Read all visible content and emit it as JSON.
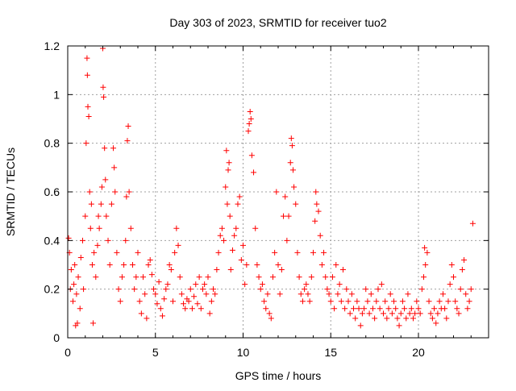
{
  "chart_data": {
    "type": "scatter",
    "title": "Day 303 of 2023, SRMTID for receiver tuo2",
    "xlabel": "GPS time / hours",
    "ylabel": "SRMTID / TECUs",
    "xlim": [
      0,
      24
    ],
    "ylim": [
      0,
      1.2
    ],
    "x_ticks": [
      0,
      5,
      10,
      15,
      20
    ],
    "x_tick_labels": [
      "0",
      "5",
      "10",
      "15",
      "20"
    ],
    "y_ticks": [
      0,
      0.2,
      0.4,
      0.6,
      0.8,
      1,
      1.2
    ],
    "y_tick_labels": [
      "0",
      "0.2",
      "0.4",
      "0.6",
      "0.8",
      "1",
      "1.2"
    ],
    "grid": true,
    "marker": "+",
    "color": "#ff0000",
    "series": [
      {
        "name": "SRMTID",
        "points": [
          [
            0.05,
            0.41
          ],
          [
            0.1,
            0.35
          ],
          [
            0.15,
            0.2
          ],
          [
            0.2,
            0.28
          ],
          [
            0.3,
            0.15
          ],
          [
            0.35,
            0.22
          ],
          [
            0.4,
            0.3
          ],
          [
            0.45,
            0.05
          ],
          [
            0.5,
            0.18
          ],
          [
            0.55,
            0.06
          ],
          [
            0.6,
            0.25
          ],
          [
            0.7,
            0.12
          ],
          [
            0.75,
            0.33
          ],
          [
            0.85,
            0.4
          ],
          [
            0.9,
            0.2
          ],
          [
            1.0,
            0.5
          ],
          [
            1.05,
            0.8
          ],
          [
            1.1,
            1.15
          ],
          [
            1.12,
            1.08
          ],
          [
            1.15,
            0.95
          ],
          [
            1.2,
            0.91
          ],
          [
            1.25,
            0.6
          ],
          [
            1.3,
            0.45
          ],
          [
            1.35,
            0.55
          ],
          [
            1.4,
            0.3
          ],
          [
            1.45,
            0.06
          ],
          [
            1.5,
            0.35
          ],
          [
            1.6,
            0.25
          ],
          [
            1.7,
            0.38
          ],
          [
            1.75,
            0.5
          ],
          [
            1.8,
            0.45
          ],
          [
            1.9,
            0.55
          ],
          [
            1.95,
            0.62
          ],
          [
            2.0,
            1.19
          ],
          [
            2.02,
            1.03
          ],
          [
            2.05,
            0.99
          ],
          [
            2.1,
            0.78
          ],
          [
            2.15,
            0.65
          ],
          [
            2.2,
            0.5
          ],
          [
            2.3,
            0.4
          ],
          [
            2.4,
            0.3
          ],
          [
            2.5,
            0.55
          ],
          [
            2.6,
            0.78
          ],
          [
            2.65,
            0.7
          ],
          [
            2.7,
            0.6
          ],
          [
            2.8,
            0.35
          ],
          [
            2.9,
            0.2
          ],
          [
            3.0,
            0.15
          ],
          [
            3.1,
            0.25
          ],
          [
            3.2,
            0.3
          ],
          [
            3.3,
            0.4
          ],
          [
            3.35,
            0.58
          ],
          [
            3.4,
            0.81
          ],
          [
            3.45,
            0.87
          ],
          [
            3.5,
            0.6
          ],
          [
            3.6,
            0.45
          ],
          [
            3.7,
            0.3
          ],
          [
            3.8,
            0.2
          ],
          [
            3.9,
            0.25
          ],
          [
            4.0,
            0.35
          ],
          [
            4.1,
            0.15
          ],
          [
            4.2,
            0.1
          ],
          [
            4.3,
            0.25
          ],
          [
            4.4,
            0.18
          ],
          [
            4.5,
            0.08
          ],
          [
            4.6,
            0.3
          ],
          [
            4.7,
            0.32
          ],
          [
            4.8,
            0.26
          ],
          [
            4.9,
            0.2
          ],
          [
            5.0,
            0.18
          ],
          [
            5.1,
            0.14
          ],
          [
            5.2,
            0.23
          ],
          [
            5.3,
            0.12
          ],
          [
            5.4,
            0.09
          ],
          [
            5.5,
            0.16
          ],
          [
            5.6,
            0.2
          ],
          [
            5.7,
            0.22
          ],
          [
            5.8,
            0.3
          ],
          [
            5.9,
            0.28
          ],
          [
            6.0,
            0.15
          ],
          [
            6.1,
            0.35
          ],
          [
            6.2,
            0.45
          ],
          [
            6.3,
            0.38
          ],
          [
            6.4,
            0.25
          ],
          [
            6.5,
            0.18
          ],
          [
            6.6,
            0.14
          ],
          [
            6.7,
            0.12
          ],
          [
            6.8,
            0.16
          ],
          [
            6.9,
            0.15
          ],
          [
            7.0,
            0.2
          ],
          [
            7.1,
            0.12
          ],
          [
            7.2,
            0.17
          ],
          [
            7.3,
            0.22
          ],
          [
            7.4,
            0.14
          ],
          [
            7.5,
            0.25
          ],
          [
            7.6,
            0.12
          ],
          [
            7.7,
            0.2
          ],
          [
            7.8,
            0.22
          ],
          [
            7.9,
            0.18
          ],
          [
            8.0,
            0.25
          ],
          [
            8.1,
            0.1
          ],
          [
            8.2,
            0.15
          ],
          [
            8.3,
            0.2
          ],
          [
            8.4,
            0.18
          ],
          [
            8.5,
            0.28
          ],
          [
            8.6,
            0.35
          ],
          [
            8.7,
            0.42
          ],
          [
            8.8,
            0.45
          ],
          [
            8.9,
            0.4
          ],
          [
            9.0,
            0.62
          ],
          [
            9.05,
            0.77
          ],
          [
            9.1,
            0.55
          ],
          [
            9.15,
            0.69
          ],
          [
            9.2,
            0.72
          ],
          [
            9.25,
            0.5
          ],
          [
            9.3,
            0.28
          ],
          [
            9.4,
            0.36
          ],
          [
            9.5,
            0.42
          ],
          [
            9.6,
            0.45
          ],
          [
            9.7,
            0.55
          ],
          [
            9.8,
            0.58
          ],
          [
            9.9,
            0.32
          ],
          [
            10.0,
            0.38
          ],
          [
            10.1,
            0.22
          ],
          [
            10.2,
            0.3
          ],
          [
            10.3,
            0.85
          ],
          [
            10.35,
            0.88
          ],
          [
            10.4,
            0.93
          ],
          [
            10.45,
            0.9
          ],
          [
            10.5,
            0.75
          ],
          [
            10.6,
            0.68
          ],
          [
            10.7,
            0.45
          ],
          [
            10.8,
            0.3
          ],
          [
            10.9,
            0.25
          ],
          [
            11.0,
            0.2
          ],
          [
            11.1,
            0.22
          ],
          [
            11.2,
            0.15
          ],
          [
            11.3,
            0.12
          ],
          [
            11.4,
            0.18
          ],
          [
            11.5,
            0.1
          ],
          [
            11.6,
            0.08
          ],
          [
            11.7,
            0.25
          ],
          [
            11.8,
            0.35
          ],
          [
            11.9,
            0.6
          ],
          [
            12.0,
            0.3
          ],
          [
            12.1,
            0.18
          ],
          [
            12.2,
            0.28
          ],
          [
            12.3,
            0.5
          ],
          [
            12.4,
            0.58
          ],
          [
            12.5,
            0.4
          ],
          [
            12.6,
            0.5
          ],
          [
            12.7,
            0.72
          ],
          [
            12.75,
            0.82
          ],
          [
            12.8,
            0.79
          ],
          [
            12.85,
            0.69
          ],
          [
            12.9,
            0.62
          ],
          [
            13.0,
            0.55
          ],
          [
            13.1,
            0.35
          ],
          [
            13.2,
            0.25
          ],
          [
            13.3,
            0.18
          ],
          [
            13.4,
            0.15
          ],
          [
            13.5,
            0.2
          ],
          [
            13.6,
            0.22
          ],
          [
            13.7,
            0.18
          ],
          [
            13.8,
            0.15
          ],
          [
            13.9,
            0.25
          ],
          [
            14.0,
            0.35
          ],
          [
            14.1,
            0.48
          ],
          [
            14.15,
            0.6
          ],
          [
            14.2,
            0.55
          ],
          [
            14.3,
            0.52
          ],
          [
            14.4,
            0.42
          ],
          [
            14.5,
            0.3
          ],
          [
            14.6,
            0.35
          ],
          [
            14.7,
            0.25
          ],
          [
            14.8,
            0.2
          ],
          [
            14.9,
            0.18
          ],
          [
            15.0,
            0.15
          ],
          [
            15.1,
            0.25
          ],
          [
            15.2,
            0.12
          ],
          [
            15.3,
            0.3
          ],
          [
            15.4,
            0.18
          ],
          [
            15.5,
            0.22
          ],
          [
            15.6,
            0.15
          ],
          [
            15.7,
            0.28
          ],
          [
            15.8,
            0.12
          ],
          [
            15.9,
            0.2
          ],
          [
            16.0,
            0.15
          ],
          [
            16.1,
            0.1
          ],
          [
            16.2,
            0.18
          ],
          [
            16.3,
            0.12
          ],
          [
            16.4,
            0.08
          ],
          [
            16.5,
            0.15
          ],
          [
            16.6,
            0.12
          ],
          [
            16.7,
            0.05
          ],
          [
            16.8,
            0.1
          ],
          [
            16.9,
            0.12
          ],
          [
            17.0,
            0.2
          ],
          [
            17.1,
            0.15
          ],
          [
            17.2,
            0.1
          ],
          [
            17.3,
            0.18
          ],
          [
            17.4,
            0.12
          ],
          [
            17.5,
            0.08
          ],
          [
            17.6,
            0.15
          ],
          [
            17.7,
            0.2
          ],
          [
            17.8,
            0.12
          ],
          [
            17.9,
            0.22
          ],
          [
            18.0,
            0.1
          ],
          [
            18.1,
            0.15
          ],
          [
            18.2,
            0.08
          ],
          [
            18.3,
            0.12
          ],
          [
            18.4,
            0.18
          ],
          [
            18.5,
            0.1
          ],
          [
            18.6,
            0.15
          ],
          [
            18.7,
            0.12
          ],
          [
            18.8,
            0.08
          ],
          [
            18.9,
            0.05
          ],
          [
            19.0,
            0.1
          ],
          [
            19.1,
            0.15
          ],
          [
            19.2,
            0.12
          ],
          [
            19.3,
            0.08
          ],
          [
            19.4,
            0.18
          ],
          [
            19.5,
            0.1
          ],
          [
            19.6,
            0.12
          ],
          [
            19.7,
            0.08
          ],
          [
            19.8,
            0.1
          ],
          [
            19.9,
            0.15
          ],
          [
            20.0,
            0.12
          ],
          [
            20.1,
            0.1
          ],
          [
            20.2,
            0.2
          ],
          [
            20.3,
            0.25
          ],
          [
            20.35,
            0.37
          ],
          [
            20.4,
            0.3
          ],
          [
            20.5,
            0.35
          ],
          [
            20.6,
            0.15
          ],
          [
            20.7,
            0.1
          ],
          [
            20.8,
            0.08
          ],
          [
            20.9,
            0.12
          ],
          [
            21.0,
            0.06
          ],
          [
            21.1,
            0.1
          ],
          [
            21.2,
            0.15
          ],
          [
            21.3,
            0.12
          ],
          [
            21.4,
            0.18
          ],
          [
            21.5,
            0.12
          ],
          [
            21.6,
            0.08
          ],
          [
            21.7,
            0.15
          ],
          [
            21.8,
            0.22
          ],
          [
            21.9,
            0.3
          ],
          [
            22.0,
            0.25
          ],
          [
            22.1,
            0.15
          ],
          [
            22.2,
            0.12
          ],
          [
            22.3,
            0.1
          ],
          [
            22.4,
            0.2
          ],
          [
            22.5,
            0.28
          ],
          [
            22.6,
            0.32
          ],
          [
            22.7,
            0.18
          ],
          [
            22.8,
            0.12
          ],
          [
            22.9,
            0.15
          ],
          [
            23.0,
            0.2
          ],
          [
            23.1,
            0.47
          ]
        ]
      }
    ]
  }
}
